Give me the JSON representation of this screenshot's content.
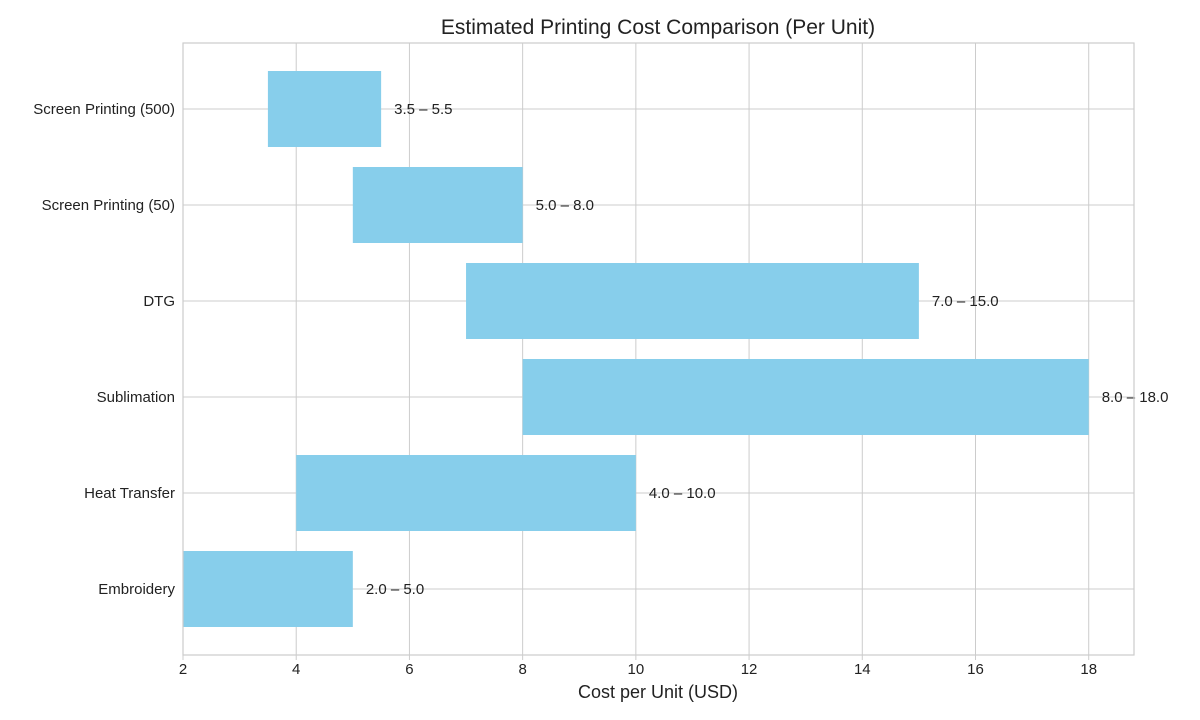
{
  "chart_data": {
    "type": "bar",
    "orientation": "horizontal",
    "subtype": "range",
    "title": "Estimated Printing Cost Comparison (Per Unit)",
    "xlabel": "Cost per Unit (USD)",
    "ylabel": "",
    "xlim": [
      2,
      18.8
    ],
    "xticks": [
      2,
      4,
      6,
      8,
      10,
      12,
      14,
      16,
      18
    ],
    "grid": true,
    "bar_color": "#87CEEB",
    "categories": [
      "Screen Printing (500)",
      "Screen Printing (50)",
      "DTG",
      "Sublimation",
      "Heat Transfer",
      "Embroidery"
    ],
    "ranges": [
      {
        "min": 3.5,
        "max": 5.5,
        "label": "3.5 – 5.5"
      },
      {
        "min": 5.0,
        "max": 8.0,
        "label": "5.0 – 8.0"
      },
      {
        "min": 7.0,
        "max": 15.0,
        "label": "7.0 – 15.0"
      },
      {
        "min": 8.0,
        "max": 18.0,
        "label": "8.0 – 18.0"
      },
      {
        "min": 4.0,
        "max": 10.0,
        "label": "4.0 – 10.0"
      },
      {
        "min": 2.0,
        "max": 5.0,
        "label": "2.0 – 5.0"
      }
    ]
  }
}
